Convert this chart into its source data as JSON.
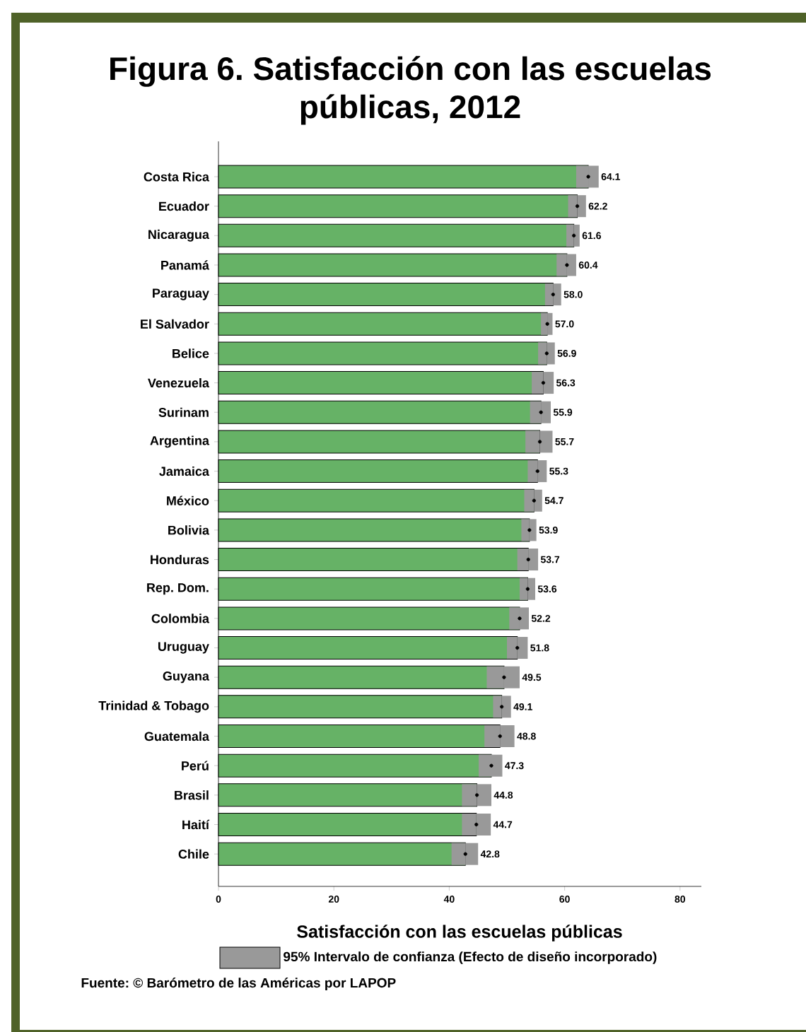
{
  "chart_data": {
    "type": "bar",
    "orientation": "horizontal",
    "title": "Figura 6. Satisfacción con las escuelas públicas, 2012",
    "xlabel": "Satisfacción con las escuelas públicas",
    "categories": [
      "Costa Rica",
      "Ecuador",
      "Nicaragua",
      "Panamá",
      "Paraguay",
      "El Salvador",
      "Belice",
      "Venezuela",
      "Surinam",
      "Argentina",
      "Jamaica",
      "México",
      "Bolivia",
      "Honduras",
      "Rep. Dom.",
      "Colombia",
      "Uruguay",
      "Guyana",
      "Trinidad & Tobago",
      "Guatemala",
      "Perú",
      "Brasil",
      "Haití",
      "Chile"
    ],
    "series": [
      {
        "color": "#66b266",
        "values": [
          64.1,
          62.2,
          61.6,
          60.4,
          58.0,
          57.0,
          56.9,
          56.3,
          55.9,
          55.7,
          55.3,
          54.7,
          53.9,
          53.7,
          53.6,
          52.2,
          51.8,
          49.5,
          49.1,
          48.8,
          47.3,
          44.8,
          44.7,
          42.8
        ],
        "value_labels": [
          "64.1",
          "62.2",
          "61.6",
          "60.4",
          "58.0",
          "57.0",
          "56.9",
          "56.3",
          "55.9",
          "55.7",
          "55.3",
          "54.7",
          "53.9",
          "53.7",
          "53.6",
          "52.2",
          "51.8",
          "49.5",
          "49.1",
          "48.8",
          "47.3",
          "44.8",
          "44.7",
          "42.8"
        ],
        "errors": [
          [
            62.0,
            65.9
          ],
          [
            60.6,
            63.7
          ],
          [
            60.3,
            62.6
          ],
          [
            58.6,
            62.0
          ],
          [
            56.6,
            59.4
          ],
          [
            55.9,
            57.9
          ],
          [
            55.4,
            58.3
          ],
          [
            54.3,
            58.1
          ],
          [
            54.0,
            57.6
          ],
          [
            53.2,
            57.9
          ],
          [
            53.6,
            56.9
          ],
          [
            53.0,
            56.1
          ],
          [
            52.5,
            55.1
          ],
          [
            51.8,
            55.4
          ],
          [
            52.2,
            54.9
          ],
          [
            50.4,
            53.8
          ],
          [
            50.0,
            53.6
          ],
          [
            46.5,
            52.2
          ],
          [
            47.6,
            50.7
          ],
          [
            46.1,
            51.3
          ],
          [
            45.1,
            49.2
          ],
          [
            42.2,
            47.3
          ],
          [
            42.2,
            47.2
          ],
          [
            40.4,
            45.0
          ]
        ]
      },
      {
        "type": "scatter",
        "color": "#000000",
        "values": [
          64.1,
          62.2,
          61.6,
          60.4,
          58.0,
          57.0,
          56.9,
          56.3,
          55.9,
          55.7,
          55.3,
          54.7,
          53.9,
          53.7,
          53.6,
          52.2,
          51.8,
          49.5,
          49.1,
          48.8,
          47.3,
          44.8,
          44.7,
          42.8
        ]
      }
    ],
    "xlim": [
      0,
      83.7
    ],
    "xticks": [
      0,
      20,
      40,
      60,
      80
    ],
    "marker": "circle",
    "grid": false,
    "annotations": [
      "95% Intervalo de confianza (Efecto de diseño incorporado)",
      "Fuente: © Barómetro de las Américas por LAPOP"
    ]
  }
}
